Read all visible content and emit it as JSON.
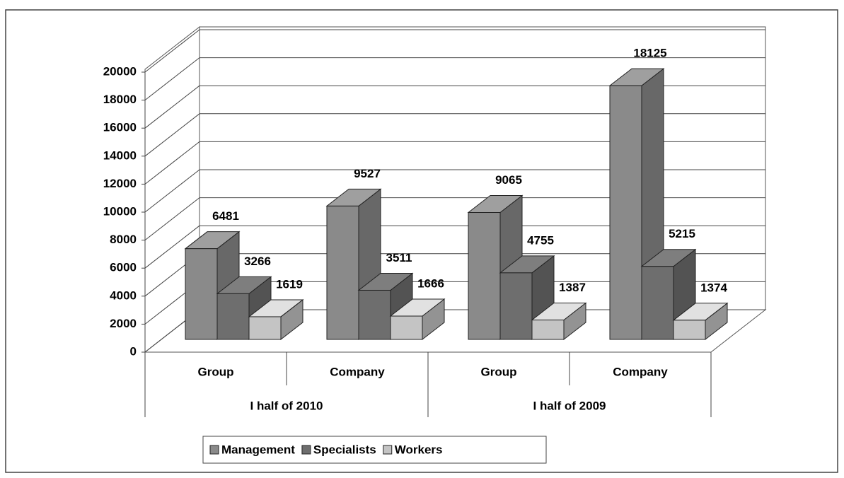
{
  "chart_data": {
    "type": "bar3d",
    "categories": [
      "Group",
      "Company",
      "Group",
      "Company"
    ],
    "group_labels": [
      "I half of 2010",
      "I half of 2009"
    ],
    "series": [
      {
        "name": "Management",
        "color": "#8a8a8a",
        "values": [
          6481,
          9527,
          9065,
          18125
        ]
      },
      {
        "name": "Specialists",
        "color": "#6e6e6e",
        "values": [
          3266,
          3511,
          4755,
          5215
        ]
      },
      {
        "name": "Workers",
        "color": "#c4c4c4",
        "values": [
          1619,
          1666,
          1387,
          1374
        ]
      }
    ],
    "ylim": [
      0,
      20000
    ],
    "yticks": [
      0,
      2000,
      4000,
      6000,
      8000,
      10000,
      12000,
      14000,
      16000,
      18000,
      20000
    ],
    "grid": true,
    "legend": "bottom"
  }
}
